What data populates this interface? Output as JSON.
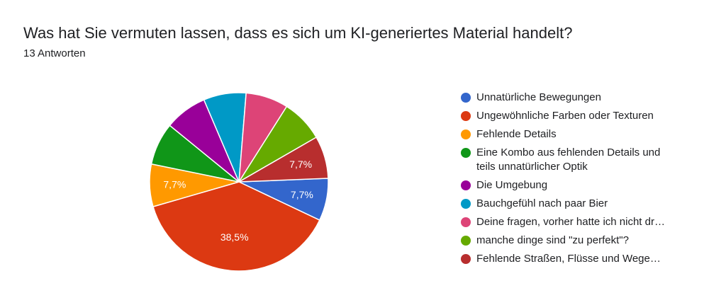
{
  "title": "Was hat Sie vermuten lassen, dass es sich um KI-generiertes Material handelt?",
  "subtitle": "13 Antworten",
  "chart_data": {
    "type": "pie",
    "title": "Was hat Sie vermuten lassen, dass es sich um KI-generiertes Material handelt?",
    "total_responses": 13,
    "legend_position": "right",
    "slices": [
      {
        "label": "Unnatürliche Bewegungen",
        "count": 1,
        "value_label": "7,7%",
        "color": "#3366cc"
      },
      {
        "label": "Ungewöhnliche Farben oder Texturen",
        "count": 5,
        "value_label": "38,5%",
        "color": "#dc3912"
      },
      {
        "label": "Fehlende Details",
        "count": 1,
        "value_label": "7,7%",
        "color": "#ff9900"
      },
      {
        "label": "Eine Kombo aus fehlenden Details und\nteils unnatürlicher Optik",
        "count": 1,
        "value_label": "",
        "color": "#109618"
      },
      {
        "label": "Die Umgebung",
        "count": 1,
        "value_label": "",
        "color": "#990099"
      },
      {
        "label": "Bauchgefühl nach paar Bier",
        "count": 1,
        "value_label": "",
        "color": "#0099c6"
      },
      {
        "label": "Deine fragen, vorher hatte ich nicht dr…",
        "count": 1,
        "value_label": "",
        "color": "#dd4477"
      },
      {
        "label": "manche dinge sind \"zu perfekt\"?",
        "count": 1,
        "value_label": "",
        "color": "#66aa00"
      },
      {
        "label": "Fehlende Straßen, Flüsse und Wege…",
        "count": 1,
        "value_label": "7,7%",
        "color": "#b82e2e"
      }
    ]
  }
}
